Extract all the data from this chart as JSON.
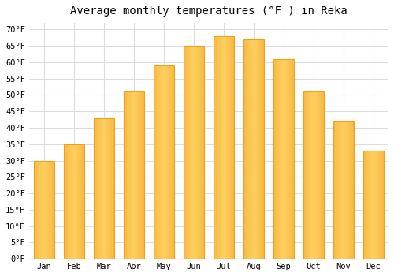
{
  "title": "Average monthly temperatures (°F ) in Reka",
  "months": [
    "Jan",
    "Feb",
    "Mar",
    "Apr",
    "May",
    "Jun",
    "Jul",
    "Aug",
    "Sep",
    "Oct",
    "Nov",
    "Dec"
  ],
  "values": [
    30,
    35,
    43,
    51,
    59,
    65,
    68,
    67,
    61,
    51,
    42,
    33
  ],
  "bar_color_light": "#FFD060",
  "bar_color_edge": "#F0A020",
  "ylim": [
    0,
    72
  ],
  "yticks": [
    0,
    5,
    10,
    15,
    20,
    25,
    30,
    35,
    40,
    45,
    50,
    55,
    60,
    65,
    70
  ],
  "ytick_labels": [
    "0°F",
    "5°F",
    "10°F",
    "15°F",
    "20°F",
    "25°F",
    "30°F",
    "35°F",
    "40°F",
    "45°F",
    "50°F",
    "55°F",
    "60°F",
    "65°F",
    "70°F"
  ],
  "plot_bg_color": "#FFFFFF",
  "fig_bg_color": "#FFFFFF",
  "grid_color": "#DDDDDD",
  "title_fontsize": 10,
  "tick_fontsize": 7.5,
  "font_family": "monospace",
  "bar_width": 0.7
}
